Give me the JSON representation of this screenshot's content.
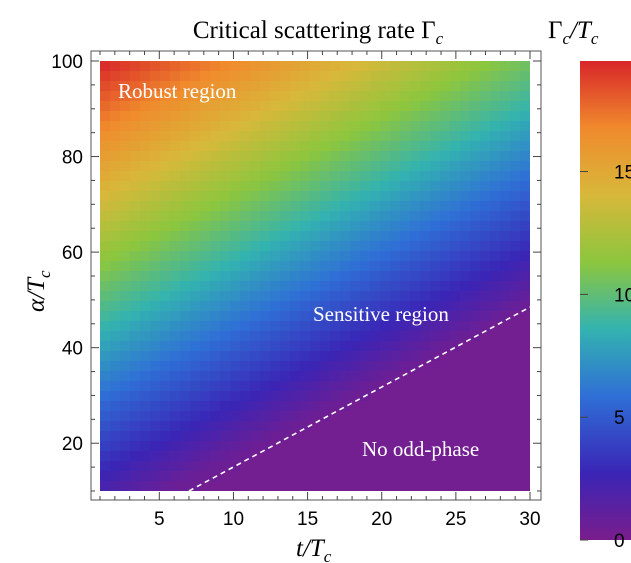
{
  "chart_data": {
    "type": "heatmap",
    "title": "Critical scattering rate Γ",
    "title_sub": "c",
    "xlabel": "t/T",
    "xlabel_sub": "c",
    "ylabel": "α/T",
    "ylabel_sub": "c",
    "colorbar_label": "Γ",
    "colorbar_label_mid": "c",
    "colorbar_label_end": "/T",
    "colorbar_label_sub2": "c",
    "xlim": [
      1,
      30
    ],
    "ylim": [
      10,
      100
    ],
    "colorbar_range": [
      0,
      19.5
    ],
    "x_ticks": [
      5,
      10,
      15,
      20,
      25,
      30
    ],
    "y_ticks": [
      20,
      40,
      60,
      80,
      100
    ],
    "colorbar_ticks": [
      "0",
      "5",
      "10",
      "15"
    ],
    "boundary_line": {
      "style": "dashed",
      "color": "#ffffff",
      "x": [
        7,
        30
      ],
      "y": [
        10,
        48.5
      ]
    },
    "annotations": {
      "robust": "Robust region",
      "sensitive": "Sensitive region",
      "none": "No odd-phase"
    },
    "colormap": [
      "#7a1d8c",
      "#3a25b6",
      "#2f6fd6",
      "#33b3b0",
      "#8cc63e",
      "#d8b83a",
      "#f08a2c",
      "#d8262a"
    ],
    "model": "value ≈ (y - 1.6·x) · 0.195, clipped at 0 below the boundary"
  }
}
